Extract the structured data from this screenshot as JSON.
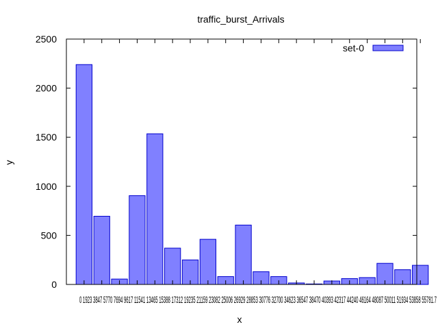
{
  "chart_data": {
    "type": "bar",
    "title": "traffic_burst_Arrivals",
    "xlabel": "x",
    "ylabel": "y",
    "ylim": [
      0,
      2500
    ],
    "yticks": [
      0,
      500,
      1000,
      1500,
      2000,
      2500
    ],
    "xlim": [
      0,
      19.8
    ],
    "xtick_labels": [
      "0",
      "1923.5",
      "3847",
      "5770.5",
      "7694",
      "9617.5",
      "11541",
      "13464.5",
      "15388",
      "17311.5",
      "19235",
      "21158.5",
      "23082",
      "25005.5",
      "26929",
      "28852.5",
      "30776",
      "32699.5",
      "34623",
      "36546.5",
      "38470",
      "40393.5"
    ],
    "xtick_caption": "0 1923 3847 5770 7694 9617 11541 13465 15388 17312 19235 21159 23082 25006 26929 28853 30776 32700 34623 36547 38470 40393 42317 44240 46164 48087 50011 51934 53858 55781.7",
    "legend": {
      "position": "top-right",
      "entries": [
        {
          "name": "set-0",
          "color": "#8080ff"
        }
      ]
    },
    "bar_fill": "#8080ff",
    "bar_stroke": "#0000cc",
    "bar_width": 0.9,
    "series": [
      {
        "name": "set-0",
        "x": [
          1,
          2,
          3,
          4,
          5,
          6,
          7,
          8,
          9,
          10,
          11,
          12,
          13,
          14,
          15,
          16,
          17,
          18,
          19,
          20
        ],
        "values": [
          2240,
          695,
          55,
          905,
          1535,
          370,
          250,
          460,
          80,
          605,
          130,
          80,
          15,
          5,
          35,
          60,
          70,
          215,
          150,
          195
        ]
      }
    ]
  }
}
